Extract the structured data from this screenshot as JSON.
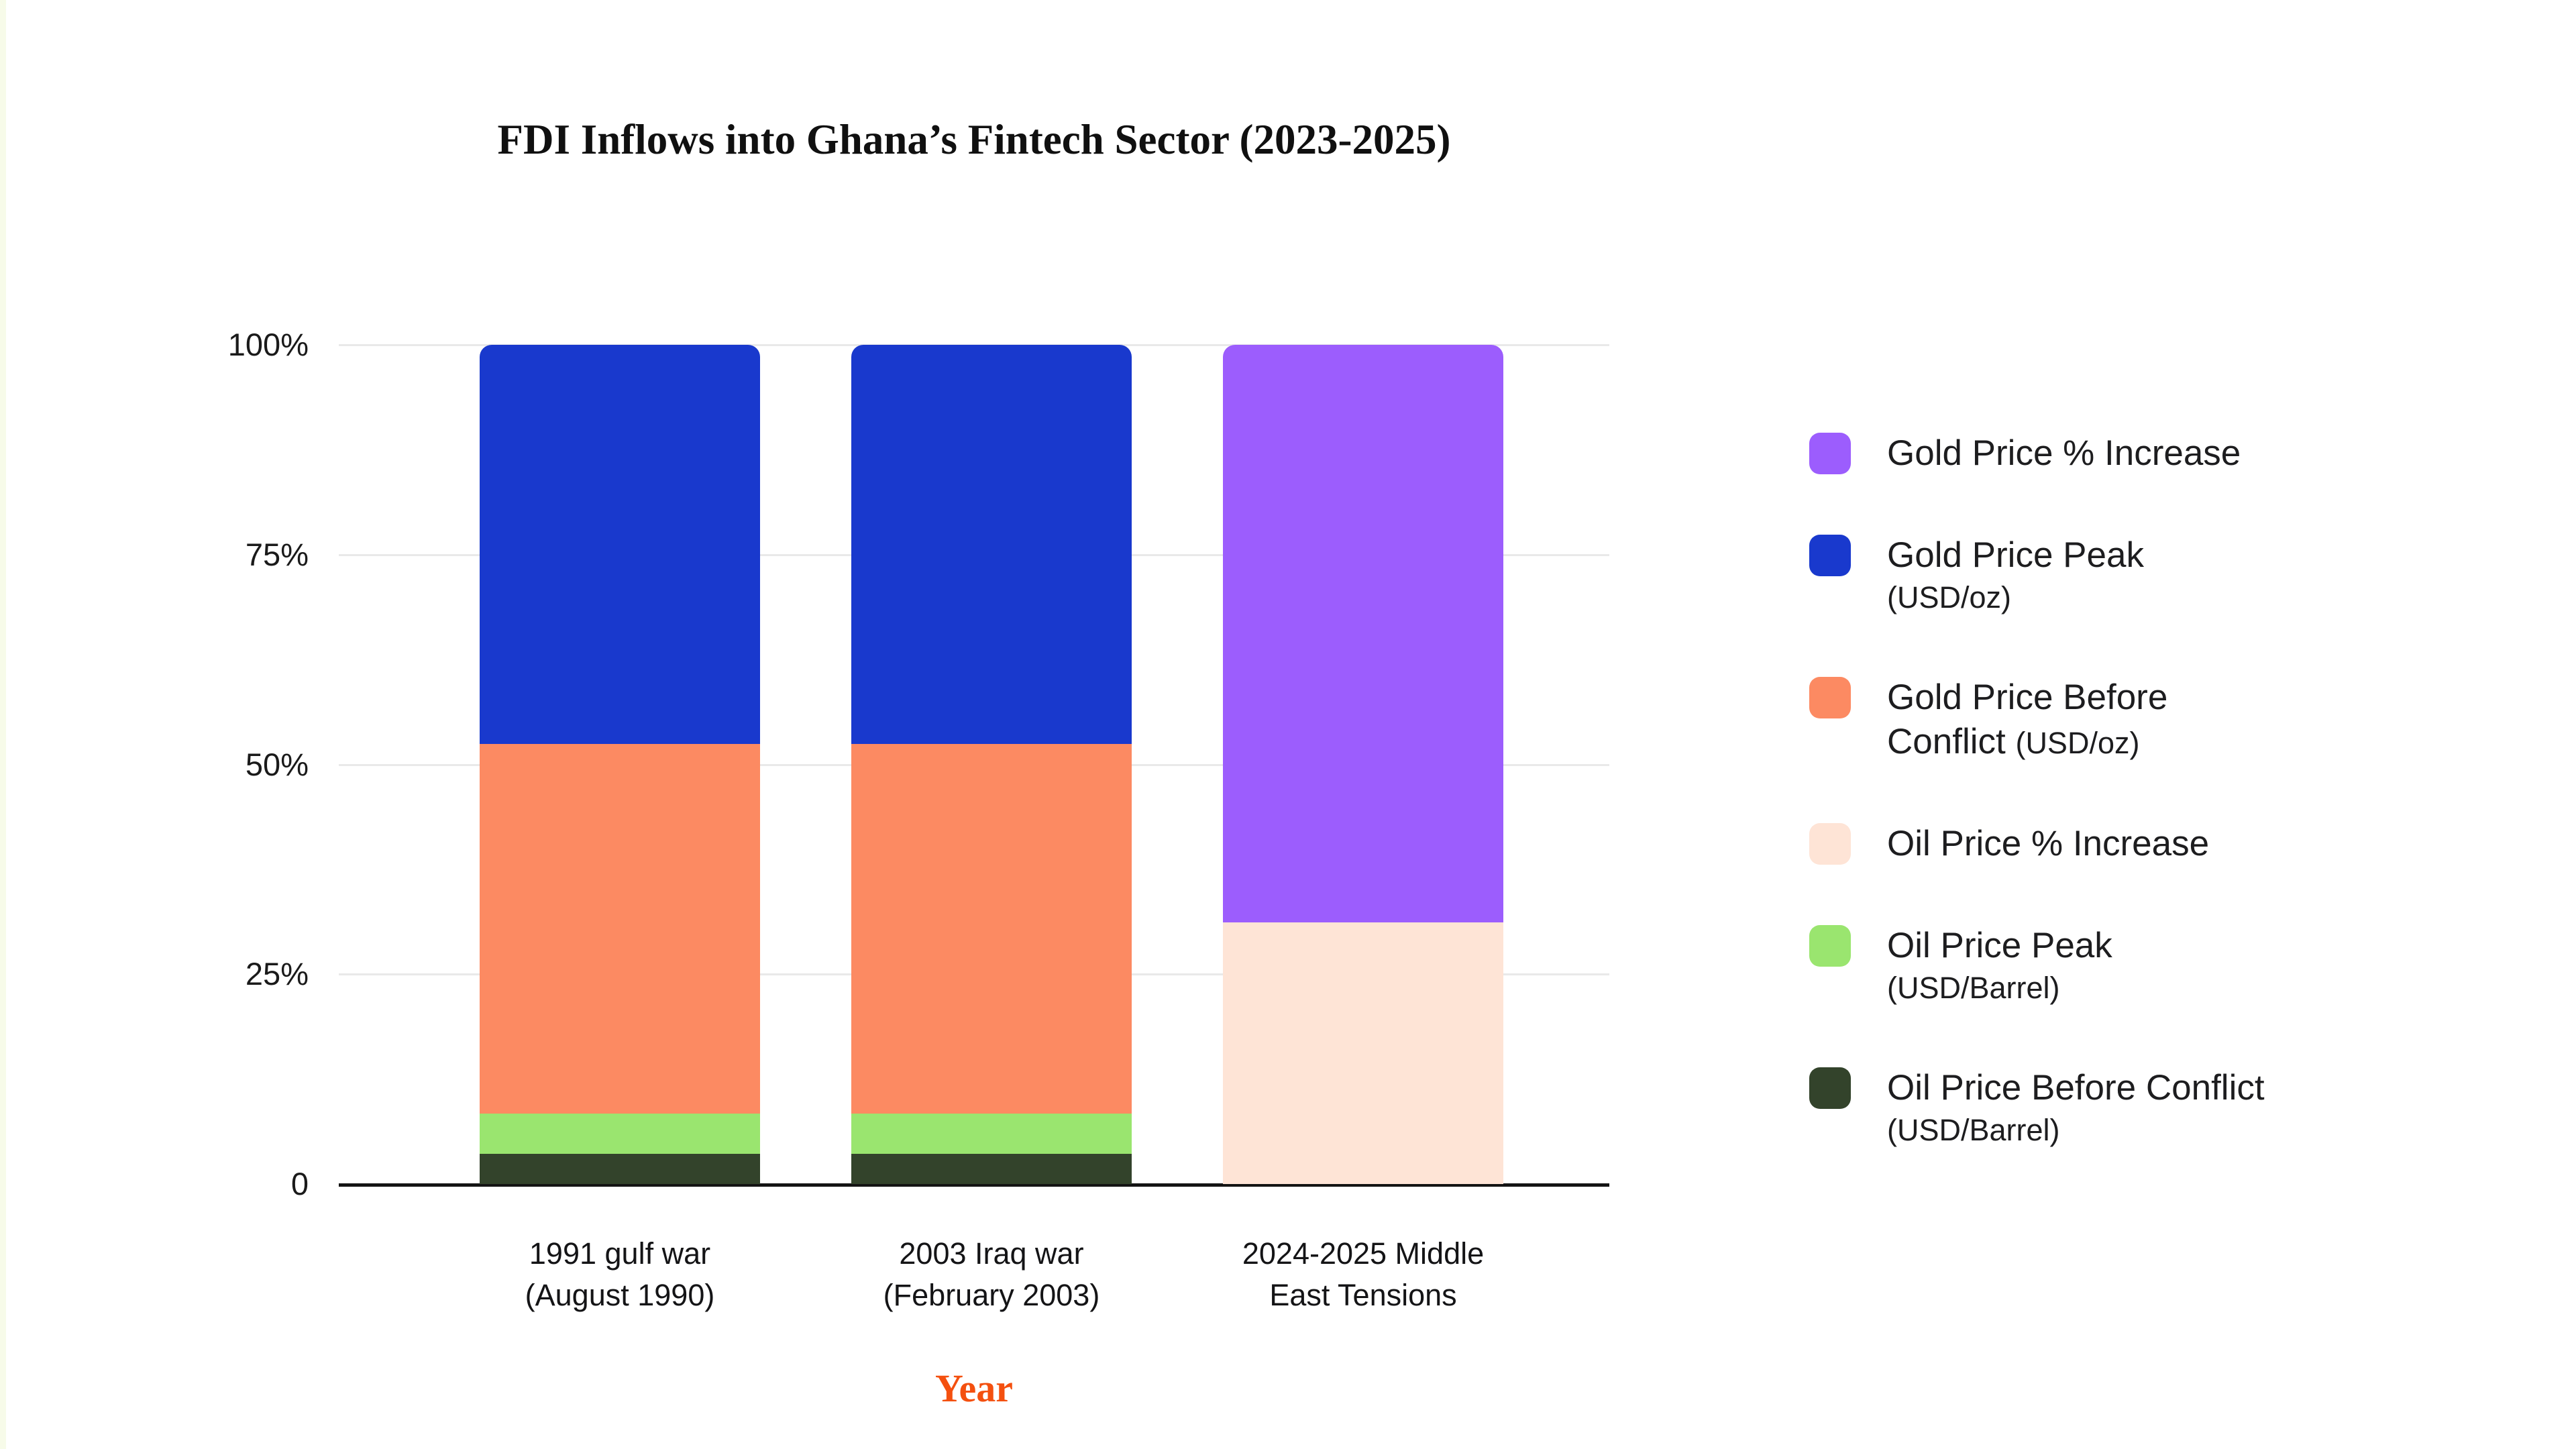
{
  "title": "FDI Inflows into Ghana’s Fintech Sector (2023-2025)",
  "x_axis": {
    "title": "Year",
    "title_color": "#f4500f",
    "tick_labels": [
      [
        "1991 gulf war",
        "(August 1990)"
      ],
      [
        "2003 Iraq war",
        "(February 2003)"
      ],
      [
        "2024-2025 Middle",
        "East Tensions"
      ]
    ]
  },
  "y_axis": {
    "ticks": [
      {
        "label": "100%",
        "value": 100
      },
      {
        "label": "75%",
        "value": 75
      },
      {
        "label": "50%",
        "value": 50
      },
      {
        "label": "25%",
        "value": 25
      },
      {
        "label": "0",
        "value": 0
      }
    ]
  },
  "colors": {
    "gold_pct_increase": "#9c5dfd",
    "gold_price_peak": "#1939cd",
    "gold_price_before": "#fc8a62",
    "oil_pct_increase": "#fee4d6",
    "oil_price_peak": "#9ae56f",
    "oil_price_before": "#33432b",
    "axis_line": "#141414",
    "gridline": "#e9e9e9",
    "x_title": "#f4500f"
  },
  "legend": {
    "items": [
      {
        "name": "gold-price-pct-increase",
        "color": "#9c5dfd",
        "lines": [
          [
            {
              "t": "Gold Price % Increase",
              "s": "lg"
            }
          ]
        ]
      },
      {
        "name": "gold-price-peak",
        "color": "#1939cd",
        "lines": [
          [
            {
              "t": "Gold Price Peak",
              "s": "lg"
            }
          ],
          [
            {
              "t": "(USD/oz)",
              "s": "sm"
            }
          ]
        ]
      },
      {
        "name": "gold-price-before-conflict",
        "color": "#fc8a62",
        "lines": [
          [
            {
              "t": "Gold Price Before",
              "s": "lg"
            }
          ],
          [
            {
              "t": "Conflict ",
              "s": "lg"
            },
            {
              "t": "(USD/oz)",
              "s": "sm"
            }
          ]
        ]
      },
      {
        "name": "oil-price-pct-increase",
        "color": "#fee4d6",
        "lines": [
          [
            {
              "t": "Oil Price % Increase",
              "s": "lg"
            }
          ]
        ]
      },
      {
        "name": "oil-price-peak",
        "color": "#9ae56f",
        "lines": [
          [
            {
              "t": "Oil Price Peak",
              "s": "lg"
            }
          ],
          [
            {
              "t": "(USD/Barrel)",
              "s": "sm"
            }
          ]
        ]
      },
      {
        "name": "oil-price-before-conflict",
        "color": "#33432b",
        "lines": [
          [
            {
              "t": "Oil Price Before Conflict",
              "s": "lg"
            }
          ],
          [
            {
              "t": "(USD/Barrel)",
              "s": "sm"
            }
          ]
        ]
      }
    ]
  },
  "chart_data": {
    "type": "bar",
    "subtype": "stacked-100-percent",
    "title": "FDI Inflows into Ghana’s Fintech Sector (2023-2025)",
    "xlabel": "Year",
    "ylabel": "",
    "ylim": [
      0,
      100
    ],
    "y_tick_labels": [
      "0",
      "25%",
      "50%",
      "75%",
      "100%"
    ],
    "grid": "horizontal",
    "legend_position": "right",
    "categories": [
      "1991 gulf war (August 1990)",
      "2003 Iraq war (February 2003)",
      "2024-2025 Middle East Tensions"
    ],
    "series_note": "values are percent of each stacked bar (bottom-to-top stack order)",
    "series": [
      {
        "name": "Oil Price Before Conflict (USD/Barrel)",
        "color": "#33432b",
        "values": [
          3.6,
          3.6,
          0
        ]
      },
      {
        "name": "Oil Price Peak (USD/Barrel)",
        "color": "#9ae56f",
        "values": [
          4.8,
          4.8,
          0
        ]
      },
      {
        "name": "Gold Price Before Conflict (USD/oz)",
        "color": "#fc8a62",
        "values": [
          44.0,
          44.0,
          0
        ]
      },
      {
        "name": "Gold Price Peak (USD/oz)",
        "color": "#1939cd",
        "values": [
          47.6,
          47.6,
          0
        ]
      },
      {
        "name": "Oil Price % Increase",
        "color": "#fee4d6",
        "values": [
          0,
          0,
          31.2
        ]
      },
      {
        "name": "Gold Price % Increase",
        "color": "#9c5dfd",
        "values": [
          0,
          0,
          68.8
        ]
      }
    ]
  }
}
